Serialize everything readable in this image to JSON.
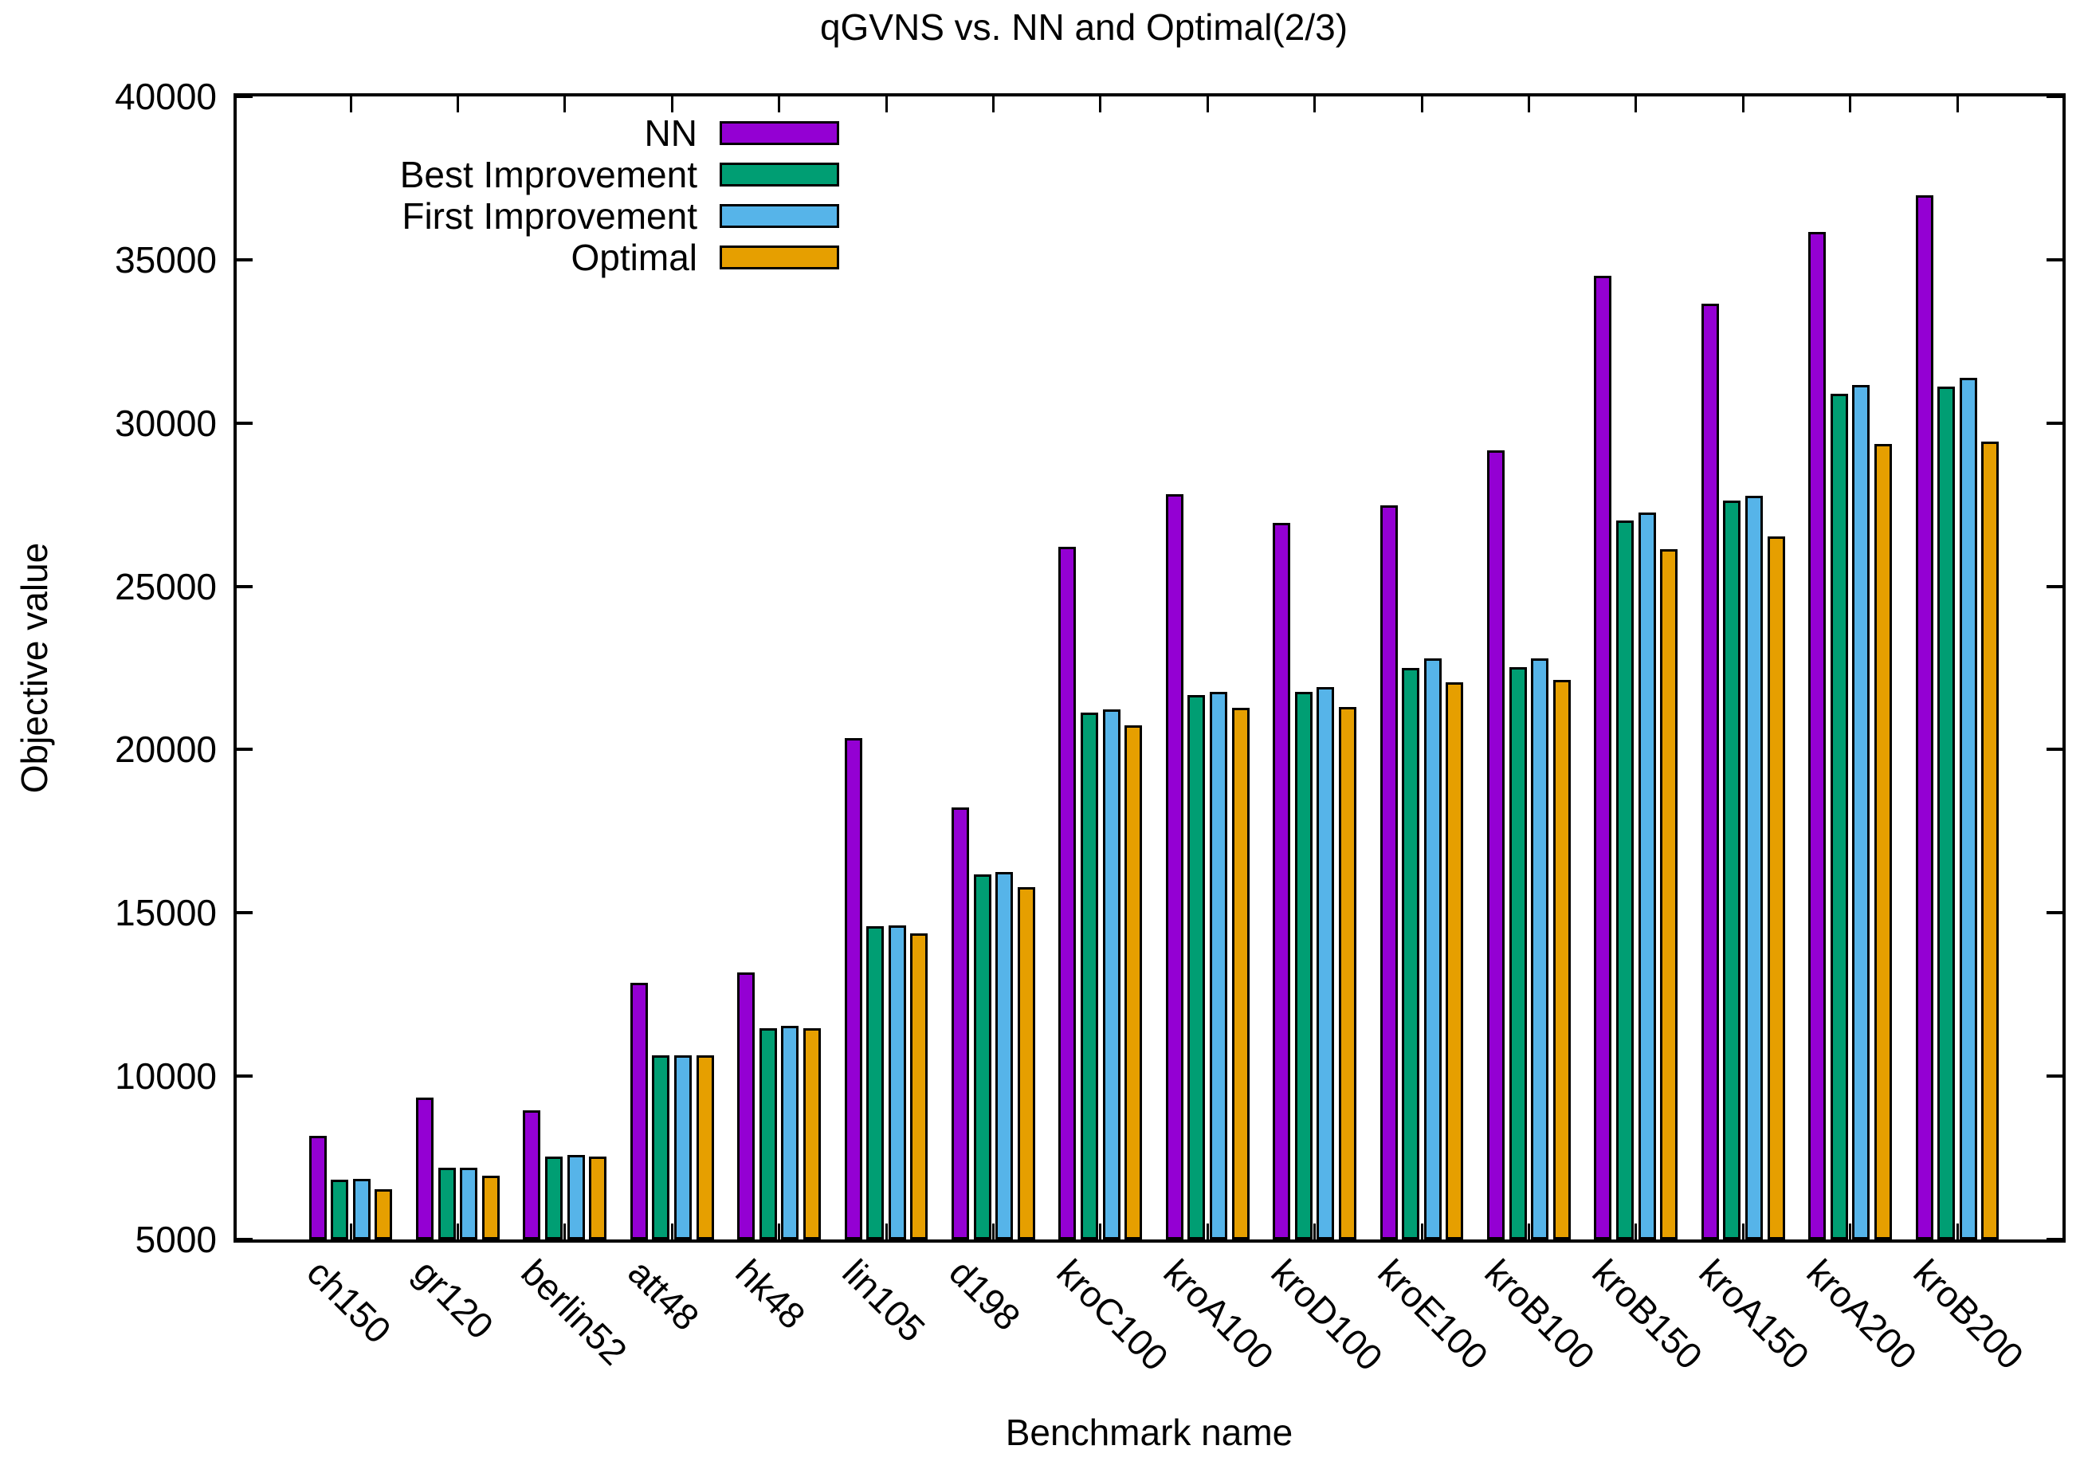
{
  "title": "qGVNS vs. NN and Optimal(2/3)",
  "chart_data": {
    "type": "bar",
    "title": "qGVNS vs. NN and Optimal(2/3)",
    "xlabel": "Benchmark name",
    "ylabel": "Objective value",
    "ylim": [
      5000,
      40000
    ],
    "yticks": [
      5000,
      10000,
      15000,
      20000,
      25000,
      30000,
      35000,
      40000
    ],
    "grid": false,
    "legend_position": "top-left-inside",
    "categories": [
      "ch150",
      "gr120",
      "berlin52",
      "att48",
      "hk48",
      "lin105",
      "d198",
      "kroC100",
      "kroA100",
      "kroD100",
      "kroE100",
      "kroB100",
      "kroB150",
      "kroA150",
      "kroA200",
      "kroB200"
    ],
    "series": [
      {
        "name": "NN",
        "color": "#9400D3",
        "values": [
          8170,
          9345,
          8960,
          12860,
          13180,
          20360,
          18220,
          26220,
          27810,
          26940,
          27470,
          29170,
          34520,
          33650,
          35860,
          36980
        ]
      },
      {
        "name": "Best Improvement",
        "color": "#009E73",
        "values": [
          6830,
          7190,
          7530,
          10640,
          11480,
          14600,
          16190,
          21130,
          21670,
          21760,
          22510,
          22530,
          27020,
          27630,
          30900,
          31120
        ]
      },
      {
        "name": "First Improvement",
        "color": "#56B4E9",
        "values": [
          6850,
          7190,
          7580,
          10640,
          11530,
          14610,
          16250,
          21230,
          21760,
          21910,
          22790,
          22790,
          27270,
          27780,
          31170,
          31380
        ]
      },
      {
        "name": "Optimal",
        "color": "#E69F00",
        "values": [
          6528,
          6942,
          7542,
          10628,
          11461,
          14379,
          15780,
          20749,
          21282,
          21294,
          22068,
          22141,
          26130,
          26524,
          29368,
          29437
        ]
      }
    ]
  }
}
